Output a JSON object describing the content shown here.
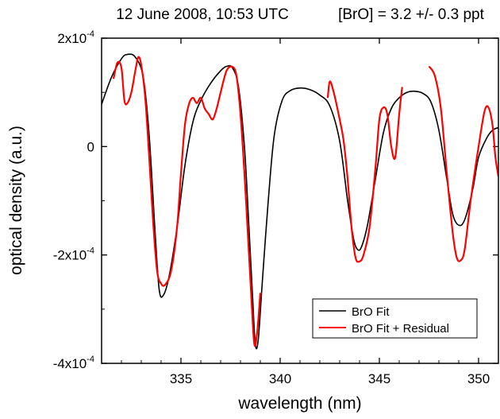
{
  "chart_data": {
    "type": "line",
    "title_left": "12 June 2008, 10:53 UTC",
    "title_right": "[BrO] = 3.2 +/- 0.3 ppt",
    "xlabel": "wavelength (nm)",
    "ylabel": "optical density (a.u.)",
    "xlim": [
      331,
      351
    ],
    "ylim": [
      -0.0004,
      0.0002
    ],
    "x_ticks": [
      335,
      340,
      345,
      350
    ],
    "x_ticklabels": [
      "335",
      "340",
      "345",
      "350"
    ],
    "y_ticks": [
      0.0002,
      0,
      -0.0002,
      -0.0004
    ],
    "y_ticklabels": [
      {
        "mantissa": "2x10",
        "exp": "-4"
      },
      {
        "mantissa": "0",
        "exp": ""
      },
      {
        "mantissa": "-2x10",
        "exp": "-4"
      },
      {
        "mantissa": "-4x10",
        "exp": "-4"
      }
    ],
    "legend_position": "bottom-right",
    "series": [
      {
        "name": "BrO Fit",
        "color": "#000000",
        "segments": [
          [
            [
              331.0,
              7.8e-05
            ],
            [
              331.5,
              0.000128
            ],
            [
              332.0,
              0.000162
            ],
            [
              332.3,
              0.00017
            ],
            [
              332.7,
              0.000165
            ],
            [
              333.1,
              0.000128
            ],
            [
              333.4,
              2e-05
            ],
            [
              333.7,
              -0.00016
            ],
            [
              333.9,
              -0.000263
            ],
            [
              334.1,
              -0.000275
            ],
            [
              334.4,
              -0.00024
            ],
            [
              334.8,
              -0.00015
            ],
            [
              335.2,
              -3.5e-05
            ],
            [
              335.6,
              4.5e-05
            ],
            [
              336.0,
              8.5e-05
            ],
            [
              336.5,
              0.000117
            ],
            [
              337.0,
              0.00014
            ],
            [
              337.3,
              0.000148
            ],
            [
              337.6,
              0.000145
            ],
            [
              337.9,
              0.00011
            ],
            [
              338.2,
              0.0
            ],
            [
              338.4,
              -0.00013
            ],
            [
              338.6,
              -0.00027
            ],
            [
              338.75,
              -0.000365
            ],
            [
              338.9,
              -0.000355
            ],
            [
              339.1,
              -0.00025
            ],
            [
              339.4,
              -0.0001
            ],
            [
              339.7,
              2e-05
            ],
            [
              340.1,
              8.5e-05
            ],
            [
              340.5,
              0.000103
            ],
            [
              341.0,
              0.000108
            ],
            [
              341.5,
              0.000105
            ],
            [
              342.0,
              9.5e-05
            ],
            [
              342.5,
              7.5e-05
            ],
            [
              343.0,
              1e-05
            ],
            [
              343.4,
              -0.0001
            ],
            [
              343.7,
              -0.00017
            ],
            [
              343.9,
              -0.00019
            ],
            [
              344.1,
              -0.000185
            ],
            [
              344.4,
              -0.000145
            ],
            [
              344.8,
              -6e-05
            ],
            [
              345.2,
              2.5e-05
            ],
            [
              345.6,
              7e-05
            ],
            [
              346.0,
              9e-05
            ],
            [
              346.4,
              0.0001
            ],
            [
              346.8,
              0.000102
            ],
            [
              347.2,
              9.8e-05
            ],
            [
              347.6,
              8.2e-05
            ],
            [
              348.0,
              3e-05
            ],
            [
              348.4,
              -6e-05
            ],
            [
              348.7,
              -0.000125
            ],
            [
              349.0,
              -0.000145
            ],
            [
              349.3,
              -0.000135
            ],
            [
              349.7,
              -8e-05
            ],
            [
              350.0,
              -2e-05
            ],
            [
              350.4,
              1.5e-05
            ],
            [
              350.7,
              3e-05
            ],
            [
              351.0,
              3.5e-05
            ]
          ]
        ]
      },
      {
        "name": "BrO Fit + Residual",
        "color": "#ff0000",
        "segments": [
          [
            [
              331.6,
              0.000125
            ],
            [
              331.8,
              0.000155
            ],
            [
              332.0,
              0.000145
            ],
            [
              332.15,
              8.5e-05
            ],
            [
              332.3,
              8e-05
            ],
            [
              332.5,
              0.0001
            ],
            [
              332.7,
              0.00014
            ],
            [
              332.85,
              0.000165
            ],
            [
              333.0,
              0.00015
            ],
            [
              333.2,
              9e-05
            ],
            [
              333.4,
              -2e-05
            ],
            [
              333.6,
              -0.00014
            ],
            [
              333.8,
              -0.00023
            ],
            [
              334.0,
              -0.000253
            ],
            [
              334.2,
              -0.000255
            ],
            [
              334.5,
              -0.00023
            ],
            [
              334.8,
              -0.00015
            ],
            [
              335.0,
              -5e-05
            ],
            [
              335.2,
              4e-05
            ],
            [
              335.4,
              7.8e-05
            ],
            [
              335.6,
              9e-05
            ],
            [
              335.8,
              8e-05
            ],
            [
              336.0,
              9e-05
            ],
            [
              336.2,
              7e-05
            ],
            [
              336.4,
              6e-05
            ],
            [
              336.6,
              5e-05
            ],
            [
              336.8,
              7e-05
            ],
            [
              337.0,
              0.0001
            ],
            [
              337.3,
              0.00014
            ],
            [
              337.6,
              0.000147
            ],
            [
              337.8,
              0.00013
            ],
            [
              338.0,
              6e-05
            ],
            [
              338.2,
              -5e-05
            ],
            [
              338.4,
              -0.00018
            ],
            [
              338.55,
              -0.00028
            ],
            [
              338.7,
              -0.000365
            ],
            [
              338.85,
              -0.00034
            ],
            [
              339.0,
              -0.00027
            ]
          ],
          [
            [
              342.4,
              9e-05
            ],
            [
              342.5,
              0.00012
            ],
            [
              342.7,
              0.0001
            ],
            [
              343.0,
              5e-05
            ],
            [
              343.2,
              1e-05
            ],
            [
              343.4,
              -6e-05
            ],
            [
              343.6,
              -0.00015
            ],
            [
              343.8,
              -0.000205
            ],
            [
              344.0,
              -0.000212
            ],
            [
              344.2,
              -0.0002
            ],
            [
              344.5,
              -0.00015
            ],
            [
              344.8,
              -4e-05
            ],
            [
              345.0,
              5e-05
            ],
            [
              345.2,
              7.2e-05
            ],
            [
              345.4,
              6e-05
            ],
            [
              345.6,
              0.0
            ],
            [
              345.8,
              -2e-05
            ],
            [
              346.0,
              6e-05
            ],
            [
              346.15,
              0.00011
            ]
          ],
          [
            [
              347.5,
              0.000148
            ],
            [
              347.8,
              0.00013
            ],
            [
              348.1,
              7e-05
            ],
            [
              348.4,
              -5e-05
            ],
            [
              348.7,
              -0.00016
            ],
            [
              348.9,
              -0.000205
            ],
            [
              349.1,
              -0.00021
            ],
            [
              349.3,
              -0.00019
            ],
            [
              349.6,
              -0.0001
            ],
            [
              350.0,
              0.0
            ],
            [
              350.3,
              6.5e-05
            ],
            [
              350.5,
              7.2e-05
            ],
            [
              350.7,
              4e-05
            ],
            [
              350.85,
              -2e-05
            ],
            [
              351.0,
              -5.5e-05
            ]
          ]
        ]
      }
    ]
  }
}
